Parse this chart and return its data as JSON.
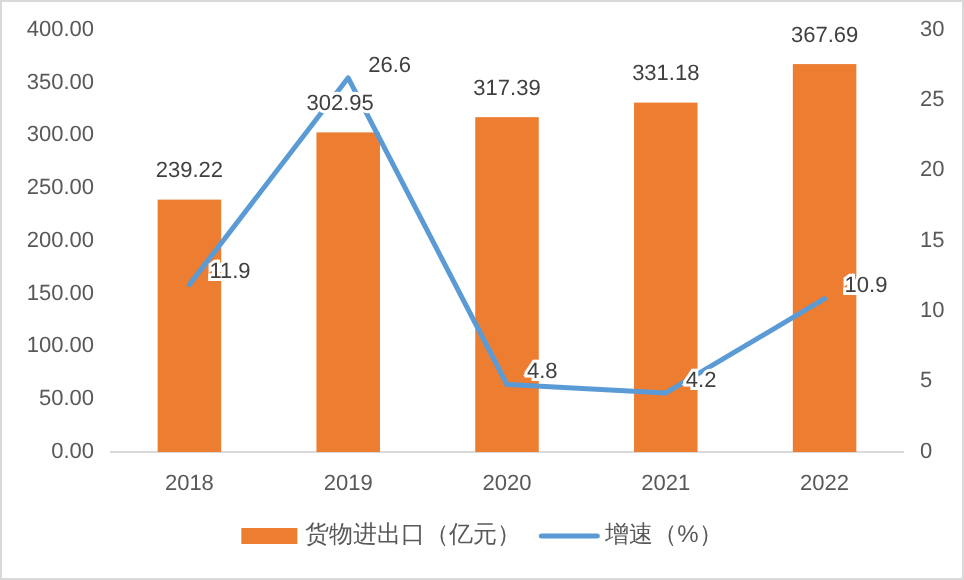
{
  "chart_data": {
    "type": "bar",
    "categories": [
      "2018",
      "2019",
      "2020",
      "2021",
      "2022"
    ],
    "series": [
      {
        "name": "货物进出口（亿元）",
        "color": "#ed7d31",
        "values": [
          239.22,
          302.95,
          317.39,
          331.18,
          367.69
        ]
      },
      {
        "name": "增速（%）",
        "type": "line",
        "axis": "y2",
        "color": "#5b9bd5",
        "values": [
          11.9,
          26.6,
          4.8,
          4.2,
          10.9
        ]
      }
    ],
    "ylim": [
      0,
      400
    ],
    "yticks": [
      {
        "value": 0,
        "label": "0.00"
      },
      {
        "value": 50,
        "label": "50.00"
      },
      {
        "value": 100,
        "label": "100.00"
      },
      {
        "value": 150,
        "label": "150.00"
      },
      {
        "value": 200,
        "label": "200.00"
      },
      {
        "value": 250,
        "label": "250.00"
      },
      {
        "value": 300,
        "label": "300.00"
      },
      {
        "value": 350,
        "label": "350.00"
      },
      {
        "value": 400,
        "label": "400.00"
      }
    ],
    "y2lim": [
      0,
      30
    ],
    "y2ticks": [
      0,
      5,
      10,
      15,
      20,
      25,
      30
    ],
    "data_labels": true,
    "legend": "bottom",
    "grid": false,
    "marker": "none",
    "line_style": "solid"
  }
}
